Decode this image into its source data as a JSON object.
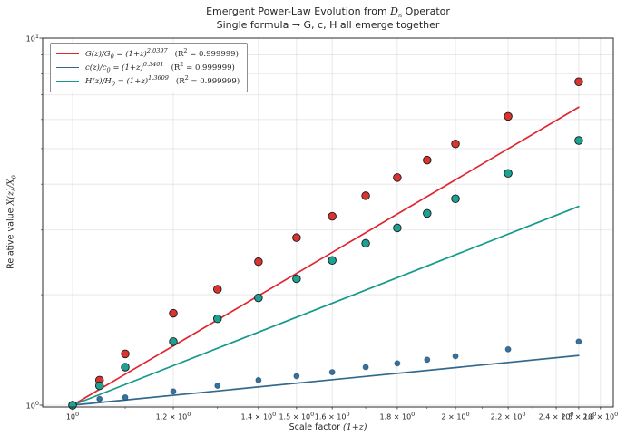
{
  "figure": {
    "title_prefix": "Emergent Power-Law Evolution from ",
    "title_math_base": "D",
    "title_math_sub": "n",
    "title_suffix": " Operator",
    "subtitle": "Single formula → G, c, H all emerge together",
    "xlabel_prefix": "Scale factor ",
    "xlabel_math": "(1+z)",
    "ylabel_prefix": "Relative value ",
    "ylabel_math_base": "X(z)/X",
    "ylabel_math_sub": "0"
  },
  "chart_data": {
    "type": "scatter",
    "x_scale": "log",
    "y_scale": "log",
    "grid": true,
    "legend_position": "upper left",
    "xlim": [
      0.947,
      2.664
    ],
    "ylim": [
      0.986,
      10
    ],
    "x": [
      1.0,
      1.05,
      1.1,
      1.2,
      1.3,
      1.4,
      1.5,
      1.6,
      1.7,
      1.8,
      1.9,
      2.0,
      2.2,
      2.5
    ],
    "fit_x_range": [
      1.0,
      2.5
    ],
    "series": [
      {
        "name": "G",
        "legend_pre": "G(z)/G",
        "legend_sub": "0",
        "legend_mid": " = (1+z)",
        "legend_exp": "2.0397",
        "r2_pre": "(R",
        "r2_sup": "2",
        "r2_post": " = 0.999999)",
        "fit_exponent": 2.0397,
        "line_color": "#e0252e",
        "dot_color": "#d9342f",
        "dot_edge": "#1a1a1a",
        "dot_radius": 4.3,
        "values": [
          1.0,
          1.17,
          1.38,
          1.78,
          2.07,
          2.46,
          2.86,
          3.27,
          3.72,
          4.17,
          4.65,
          5.15,
          6.12,
          7.6
        ]
      },
      {
        "name": "c",
        "legend_pre": "c(z)/c",
        "legend_sub": "0",
        "legend_mid": " = (1+z)",
        "legend_exp": "0.3401",
        "r2_pre": "(R",
        "r2_sup": "2",
        "r2_post": " = 0.999999)",
        "fit_exponent": 0.3401,
        "line_color": "#31688c",
        "dot_color": "#3472a2",
        "dot_edge": "rgba(20,40,60,0.5)",
        "dot_radius": 3.0,
        "values": [
          1.0,
          1.04,
          1.05,
          1.09,
          1.13,
          1.17,
          1.2,
          1.23,
          1.27,
          1.3,
          1.33,
          1.36,
          1.42,
          1.49
        ]
      },
      {
        "name": "H",
        "legend_pre": "H(z)/H",
        "legend_sub": "0",
        "legend_mid": " = (1+z)",
        "legend_exp": "1.3609",
        "r2_pre": "(R",
        "r2_sup": "2",
        "r2_post": " = 0.999999)",
        "fit_exponent": 1.3609,
        "line_color": "#14998a",
        "dot_color": "#1ba293",
        "dot_edge": "#1a1a1a",
        "dot_radius": 4.3,
        "values": [
          1.0,
          1.13,
          1.27,
          1.49,
          1.72,
          1.96,
          2.21,
          2.48,
          2.76,
          3.04,
          3.33,
          3.65,
          4.28,
          5.26
        ]
      }
    ],
    "x_ticks": [
      {
        "v": 1.0,
        "m": "",
        "e": "0"
      },
      {
        "v": 1.2,
        "m": "1.2",
        "e": "0"
      },
      {
        "v": 1.4,
        "m": "1.4",
        "e": "0"
      },
      {
        "v": 1.5,
        "m": "1.5",
        "e": "0"
      },
      {
        "v": 1.6,
        "m": "1.6",
        "e": "0"
      },
      {
        "v": 1.8,
        "m": "1.8",
        "e": "0"
      },
      {
        "v": 2.0,
        "m": "2",
        "e": "0"
      },
      {
        "v": 2.2,
        "m": "2.2",
        "e": "0"
      },
      {
        "v": 2.4,
        "m": "2.4",
        "e": "0"
      },
      {
        "v": 2.5,
        "m": "2.5",
        "e": "0"
      },
      {
        "v": 2.6,
        "m": "2.6",
        "e": "0"
      }
    ],
    "x_minor_ticks": [
      1.1,
      1.3,
      1.7,
      1.9,
      2.1,
      2.3
    ],
    "y_ticks": [
      {
        "v": 1,
        "e": "0"
      },
      {
        "v": 10,
        "e": "1"
      }
    ],
    "y_minor_ticks": [
      2,
      3,
      4,
      5,
      6,
      7,
      8,
      9
    ]
  }
}
